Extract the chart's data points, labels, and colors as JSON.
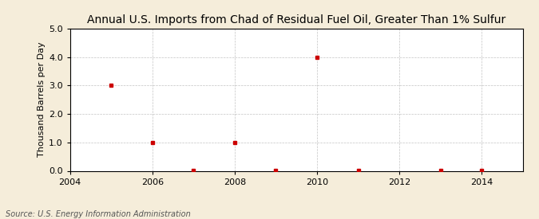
{
  "title": "Annual U.S. Imports from Chad of Residual Fuel Oil, Greater Than 1% Sulfur",
  "ylabel": "Thousand Barrels per Day",
  "source": "Source: U.S. Energy Information Administration",
  "background_color": "#f5edda",
  "plot_background_color": "#ffffff",
  "x_data": [
    2005,
    2006,
    2007,
    2008,
    2009,
    2010,
    2011,
    2013,
    2014
  ],
  "y_data": [
    3.0,
    1.0,
    0.01,
    1.0,
    0.01,
    4.0,
    0.01,
    0.01,
    0.01
  ],
  "marker_color": "#cc0000",
  "marker_size": 3,
  "xlim": [
    2004,
    2015
  ],
  "ylim": [
    0.0,
    5.0
  ],
  "xticks": [
    2004,
    2006,
    2008,
    2010,
    2012,
    2014
  ],
  "yticks": [
    0.0,
    1.0,
    2.0,
    3.0,
    4.0,
    5.0
  ],
  "grid_color": "#aaaaaa",
  "title_fontsize": 10,
  "label_fontsize": 8,
  "tick_fontsize": 8,
  "source_fontsize": 7
}
